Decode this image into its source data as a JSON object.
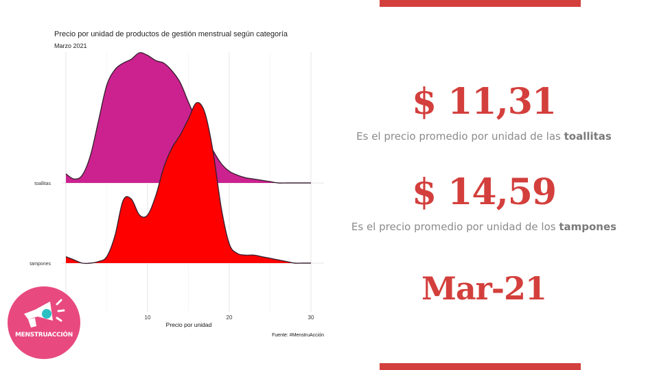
{
  "chart_data": {
    "type": "ridgeline",
    "title": "Precio por unidad de productos de gestión menstrual según categoría",
    "subtitle": "Marzo 2021",
    "xlabel": "Precio por unidad",
    "xlim": [
      0,
      31
    ],
    "x_ticks": [
      10,
      20,
      30
    ],
    "categories": [
      "toallitas",
      "tampones"
    ],
    "series": [
      {
        "name": "toallitas",
        "color": "#cc2290",
        "x": [
          0,
          1,
          2,
          3,
          4,
          5,
          6,
          7,
          8,
          9,
          10,
          11,
          12,
          13,
          14,
          15,
          16,
          17,
          18,
          19,
          20,
          21,
          22,
          23,
          24,
          25,
          26,
          27,
          28,
          29,
          30
        ],
        "density": [
          0.07,
          0.03,
          0.06,
          0.21,
          0.48,
          0.75,
          0.87,
          0.92,
          0.95,
          1.0,
          0.98,
          0.94,
          0.92,
          0.86,
          0.77,
          0.62,
          0.48,
          0.37,
          0.25,
          0.15,
          0.09,
          0.06,
          0.04,
          0.03,
          0.02,
          0.01,
          0.0,
          0.0,
          0.0,
          0.0,
          0.0
        ]
      },
      {
        "name": "tampones",
        "color": "#ff0000",
        "x": [
          0,
          1,
          2,
          3,
          4,
          5,
          6,
          7,
          8,
          9,
          10,
          11,
          12,
          13,
          14,
          15,
          16,
          17,
          18,
          19,
          20,
          21,
          22,
          23,
          24,
          25,
          26,
          27,
          28,
          29,
          30
        ],
        "density": [
          0.04,
          0.02,
          0.0,
          0.0,
          0.01,
          0.04,
          0.17,
          0.39,
          0.4,
          0.3,
          0.3,
          0.42,
          0.6,
          0.72,
          0.8,
          0.9,
          1.0,
          0.94,
          0.7,
          0.35,
          0.12,
          0.06,
          0.05,
          0.05,
          0.04,
          0.03,
          0.02,
          0.01,
          0.0,
          0.0,
          0.0
        ]
      }
    ],
    "grid": true,
    "source": "Fuente: #MenstruAcción"
  },
  "stats": [
    {
      "value": "$ 11,31",
      "desc_prefix": "Es el precio promedio por unidad de las ",
      "desc_bold": "toallitas"
    },
    {
      "value": "$ 14,59",
      "desc_prefix": "Es el precio promedio por unidad de los ",
      "desc_bold": "tampones"
    }
  ],
  "date_label": "Mar-21",
  "logo": {
    "text": "MENSTRUACCIÓN",
    "bg_color": "#e8497f",
    "icon": "megaphone-icon"
  },
  "accent_color": "#d33f3c"
}
